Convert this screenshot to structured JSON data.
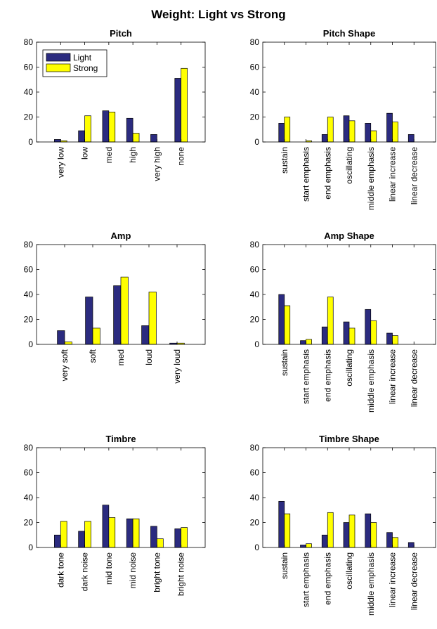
{
  "figure_title": "Weight: Light vs Strong",
  "colors": {
    "light": "#2b2b7f",
    "strong": "#ffff00",
    "edge": "#000000"
  },
  "chart_data": [
    {
      "type": "bar",
      "title": "Pitch",
      "xlabel": "",
      "ylabel": "",
      "ylim": [
        0,
        80
      ],
      "yticks": [
        0,
        20,
        40,
        60,
        80
      ],
      "categories": [
        "very low",
        "low",
        "med",
        "high",
        "very high",
        "none"
      ],
      "series": [
        {
          "name": "Light",
          "values": [
            2,
            9,
            25,
            19,
            6,
            51
          ]
        },
        {
          "name": "Strong",
          "values": [
            1,
            21,
            24,
            7,
            0,
            59
          ]
        }
      ],
      "legend": {
        "placement": "top-left"
      }
    },
    {
      "type": "bar",
      "title": "Pitch Shape",
      "xlabel": "",
      "ylabel": "",
      "ylim": [
        0,
        80
      ],
      "yticks": [
        0,
        20,
        40,
        60,
        80
      ],
      "categories": [
        "sustain",
        "start emphasis",
        "end emphasis",
        "oscillating",
        "middle emphasis",
        "linear increase",
        "linear decrease"
      ],
      "series": [
        {
          "name": "Light",
          "values": [
            15,
            0,
            6,
            21,
            15,
            23,
            6
          ]
        },
        {
          "name": "Strong",
          "values": [
            20,
            1,
            20,
            17,
            9,
            16,
            0
          ]
        }
      ]
    },
    {
      "type": "bar",
      "title": "Amp",
      "xlabel": "",
      "ylabel": "",
      "ylim": [
        0,
        80
      ],
      "yticks": [
        0,
        20,
        40,
        60,
        80
      ],
      "categories": [
        "very soft",
        "soft",
        "med",
        "loud",
        "very loud"
      ],
      "series": [
        {
          "name": "Light",
          "values": [
            11,
            38,
            47,
            15,
            1
          ]
        },
        {
          "name": "Strong",
          "values": [
            2,
            13,
            54,
            42,
            1
          ]
        }
      ]
    },
    {
      "type": "bar",
      "title": "Amp Shape",
      "xlabel": "",
      "ylabel": "",
      "ylim": [
        0,
        80
      ],
      "yticks": [
        0,
        20,
        40,
        60,
        80
      ],
      "categories": [
        "sustain",
        "start emphasis",
        "end emphasis",
        "oscillating",
        "middle emphasis",
        "linear increase",
        "linear decrease"
      ],
      "series": [
        {
          "name": "Light",
          "values": [
            40,
            3,
            14,
            18,
            28,
            9,
            0
          ]
        },
        {
          "name": "Strong",
          "values": [
            31,
            4,
            38,
            13,
            19,
            7,
            0
          ]
        }
      ]
    },
    {
      "type": "bar",
      "title": "Timbre",
      "xlabel": "",
      "ylabel": "",
      "ylim": [
        0,
        80
      ],
      "yticks": [
        0,
        20,
        40,
        60,
        80
      ],
      "categories": [
        "dark tone",
        "dark noise",
        "mid tone",
        "mid noise",
        "bright tone",
        "bright noise"
      ],
      "series": [
        {
          "name": "Light",
          "values": [
            10,
            13,
            34,
            23,
            17,
            15
          ]
        },
        {
          "name": "Strong",
          "values": [
            21,
            21,
            24,
            23,
            7,
            16
          ]
        }
      ]
    },
    {
      "type": "bar",
      "title": "Timbre Shape",
      "xlabel": "",
      "ylabel": "",
      "ylim": [
        0,
        80
      ],
      "yticks": [
        0,
        20,
        40,
        60,
        80
      ],
      "categories": [
        "sustain",
        "start emphasis",
        "end emphasis",
        "oscillating",
        "middle emphasis",
        "linear increase",
        "linear decrease"
      ],
      "series": [
        {
          "name": "Light",
          "values": [
            37,
            2,
            10,
            20,
            27,
            12,
            4
          ]
        },
        {
          "name": "Strong",
          "values": [
            27,
            3,
            28,
            26,
            20,
            8,
            0
          ]
        }
      ]
    }
  ]
}
